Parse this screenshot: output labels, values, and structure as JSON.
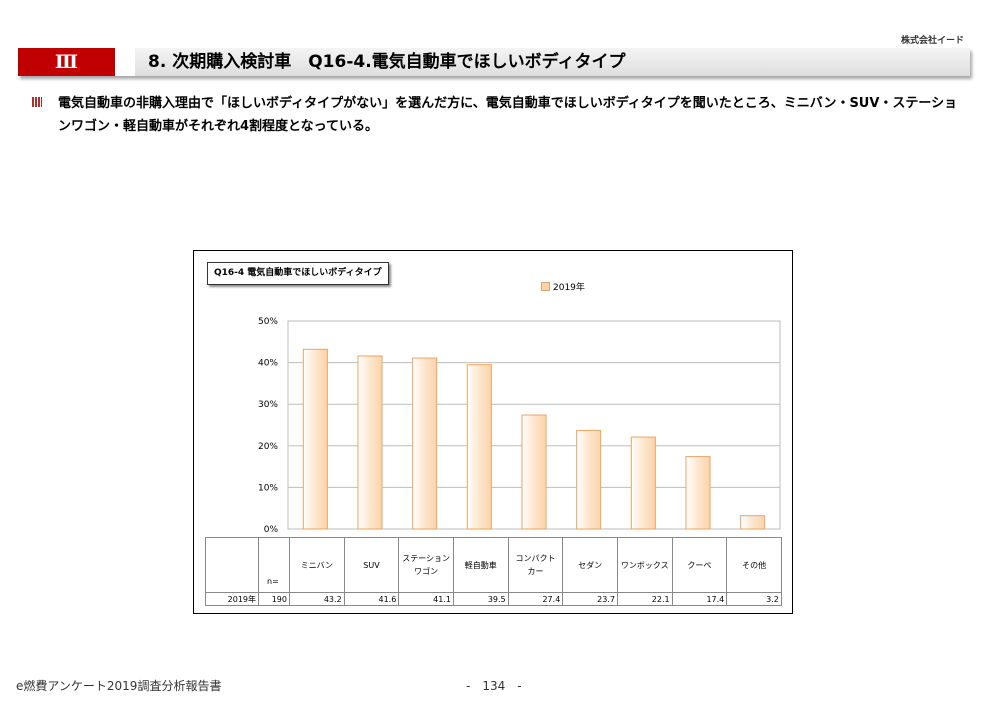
{
  "brand": "株式会社イード",
  "header": {
    "section": "Ⅲ",
    "title": "8. 次期購入検討車　Q16-4.電気自動車でほしいボディタイプ"
  },
  "description": "電気自動車の非購入理由で「ほしいボディタイプがない」を選んだ方に、電気自動車でほしいボディタイプを聞いたところ、ミニバン・SUV・ステーションワゴン・軽自動車がそれぞれ4割程度となっている。",
  "chart_data": {
    "type": "bar",
    "title": "Q16-4 電気自動車でほしいボディタイプ",
    "categories": [
      "ミニバン",
      "SUV",
      "ステーションワゴン",
      "軽自動車",
      "コンパクトカー",
      "セダン",
      "ワンボックス",
      "クーペ",
      "その他"
    ],
    "series": [
      {
        "name": "2019年",
        "values": [
          43.2,
          41.6,
          41.1,
          39.5,
          27.4,
          23.7,
          22.1,
          17.4,
          3.2
        ]
      }
    ],
    "ylim": [
      0,
      50
    ],
    "yticks": [
      "0%",
      "10%",
      "20%",
      "30%",
      "40%",
      "50%"
    ],
    "grid": true,
    "legend_position": "top",
    "bar_color": "#fad3ab",
    "bar_edge_color": "#e8a565",
    "table": {
      "n_label": "n=",
      "row_label": "2019年",
      "n": "190",
      "category_labels": [
        [
          "ミニバン"
        ],
        [
          "SUV"
        ],
        [
          "ステーション",
          "ワゴン"
        ],
        [
          "軽自動車"
        ],
        [
          "コンパクト",
          "カー"
        ],
        [
          "セダン"
        ],
        [
          "ワンボックス"
        ],
        [
          "クーペ"
        ],
        [
          "その他"
        ]
      ],
      "values": [
        "43.2",
        "41.6",
        "41.1",
        "39.5",
        "27.4",
        "23.7",
        "22.1",
        "17.4",
        "3.2"
      ]
    }
  },
  "footer": {
    "report": "e燃費アンケート2019調査分析報告書",
    "page": "-　134　-"
  }
}
